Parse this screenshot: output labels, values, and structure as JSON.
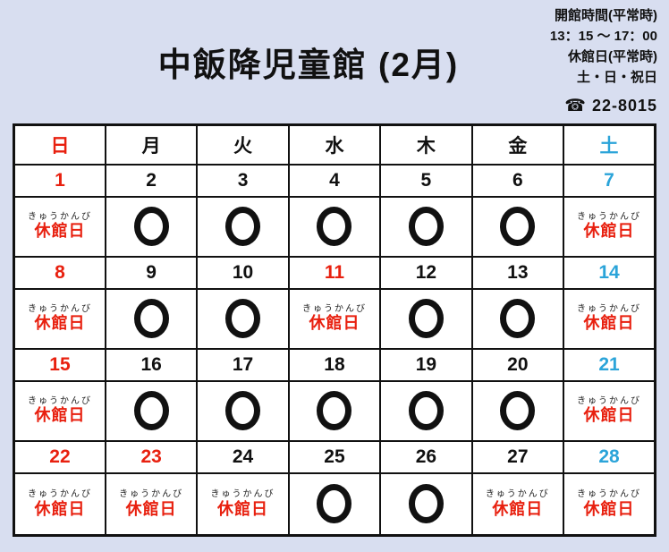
{
  "header": {
    "title": "中飯降児童館 (2月)",
    "hours_label": "開館時間(平常時)",
    "hours_value": "13：15 ～ 17：00",
    "closed_days_label": "休館日(平常時)",
    "closed_days_value": "土・日・祝日",
    "phone_icon": "☎",
    "phone_number": "22-8015"
  },
  "colors": {
    "background": "#d8def0",
    "cell_background": "#ffffff",
    "ink": "#111111",
    "holiday_red": "#e8200f",
    "saturday_blue": "#2ba4d9"
  },
  "calendar": {
    "day_headers": [
      "日",
      "月",
      "火",
      "水",
      "木",
      "金",
      "土"
    ],
    "closed_furigana": "きゅうかんび",
    "closed_label": "休館日",
    "open_symbol": "〇",
    "weeks": [
      {
        "dates": [
          "1",
          "2",
          "3",
          "4",
          "5",
          "6",
          "7"
        ],
        "date_colors": [
          "red",
          "black",
          "black",
          "black",
          "black",
          "black",
          "blue"
        ],
        "status": [
          "closed",
          "open",
          "open",
          "open",
          "open",
          "open",
          "closed"
        ]
      },
      {
        "dates": [
          "8",
          "9",
          "10",
          "11",
          "12",
          "13",
          "14"
        ],
        "date_colors": [
          "red",
          "black",
          "black",
          "red",
          "black",
          "black",
          "blue"
        ],
        "status": [
          "closed",
          "open",
          "open",
          "closed",
          "open",
          "open",
          "closed"
        ]
      },
      {
        "dates": [
          "15",
          "16",
          "17",
          "18",
          "19",
          "20",
          "21"
        ],
        "date_colors": [
          "red",
          "black",
          "black",
          "black",
          "black",
          "black",
          "blue"
        ],
        "status": [
          "closed",
          "open",
          "open",
          "open",
          "open",
          "open",
          "closed"
        ]
      },
      {
        "dates": [
          "22",
          "23",
          "24",
          "25",
          "26",
          "27",
          "28"
        ],
        "date_colors": [
          "red",
          "red",
          "black",
          "black",
          "black",
          "black",
          "blue"
        ],
        "status": [
          "closed",
          "closed",
          "closed",
          "open",
          "open",
          "closed",
          "closed"
        ]
      }
    ]
  }
}
